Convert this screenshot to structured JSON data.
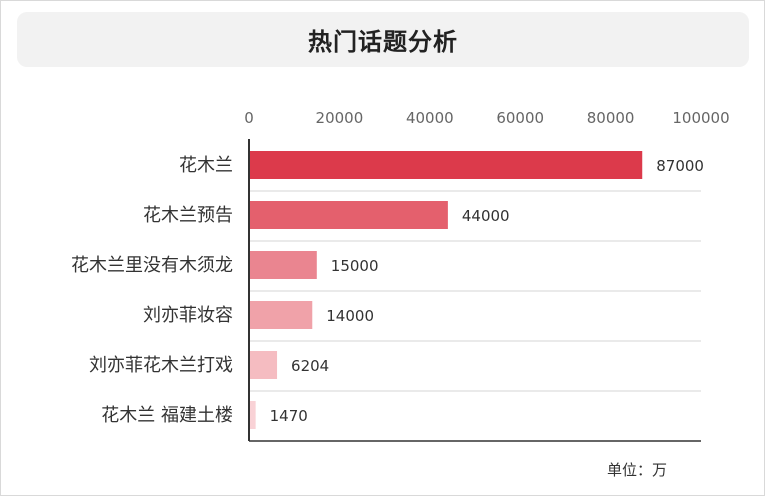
{
  "chart_data": {
    "type": "bar",
    "orientation": "horizontal",
    "title": "热门话题分析",
    "unit_label": "单位：万",
    "categories": [
      "花木兰",
      "花木兰预告",
      "花木兰里没有木须龙",
      "刘亦菲妆容",
      "刘亦菲花木兰打戏",
      "花木兰 福建土楼"
    ],
    "values": [
      87000,
      44000,
      15000,
      14000,
      6204,
      1470
    ],
    "value_labels": [
      "87000",
      "44000",
      "15000",
      "14000",
      "6204",
      "1470"
    ],
    "xlim": [
      0,
      100000
    ],
    "xticks": [
      0,
      20000,
      40000,
      60000,
      80000,
      100000
    ],
    "xtick_labels": [
      "0",
      "20000",
      "40000",
      "60000",
      "80000",
      "100000"
    ],
    "x_axis_position": "top",
    "grid": "horizontal-row-separators",
    "bar_colors": [
      "#dc3a4b",
      "#e4606d",
      "#ea8590",
      "#f0a2a9",
      "#f5bcc1",
      "#f9d2d6"
    ],
    "xlabel": "",
    "ylabel": ""
  }
}
